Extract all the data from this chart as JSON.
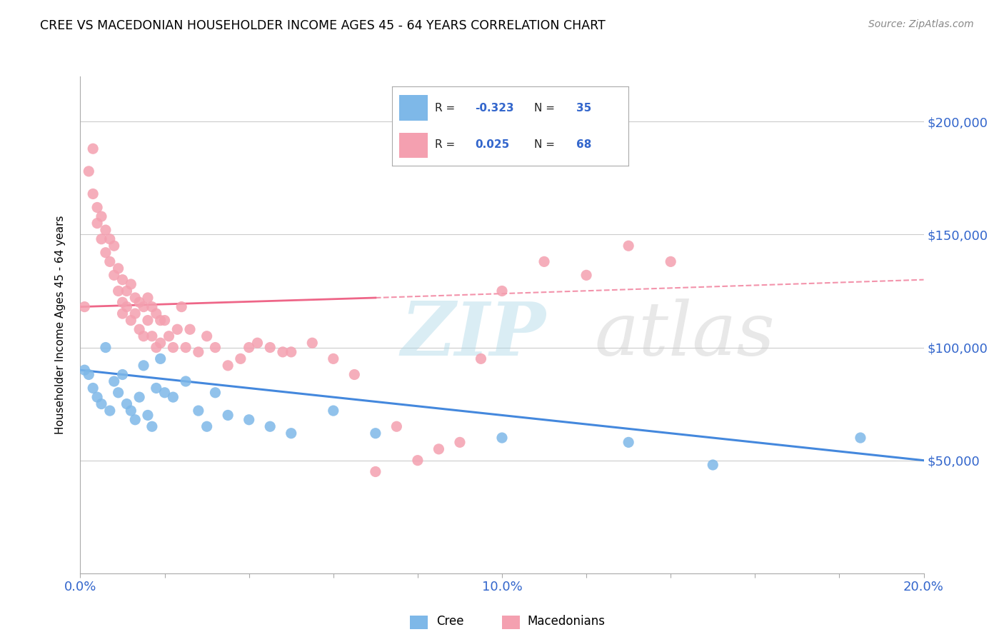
{
  "title": "CREE VS MACEDONIAN HOUSEHOLDER INCOME AGES 45 - 64 YEARS CORRELATION CHART",
  "source": "Source: ZipAtlas.com",
  "ylabel": "Householder Income Ages 45 - 64 years",
  "xlim": [
    0.0,
    0.2
  ],
  "ylim": [
    0,
    220000
  ],
  "yticks": [
    0,
    50000,
    100000,
    150000,
    200000
  ],
  "ytick_labels": [
    "",
    "$50,000",
    "$100,000",
    "$150,000",
    "$200,000"
  ],
  "xticks": [
    0.0,
    0.02,
    0.04,
    0.06,
    0.08,
    0.1,
    0.12,
    0.14,
    0.16,
    0.18,
    0.2
  ],
  "xtick_labels": [
    "0.0%",
    "",
    "",
    "",
    "",
    "10.0%",
    "",
    "",
    "",
    "",
    "20.0%"
  ],
  "cree_color": "#7EB8E8",
  "macedonian_color": "#F4A0B0",
  "cree_R": -0.323,
  "cree_N": 35,
  "macedonian_R": 0.025,
  "macedonian_N": 68,
  "cree_line_color": "#4488DD",
  "macedonian_line_color": "#EE6688",
  "cree_scatter_x": [
    0.001,
    0.002,
    0.003,
    0.004,
    0.005,
    0.006,
    0.007,
    0.008,
    0.009,
    0.01,
    0.011,
    0.012,
    0.013,
    0.014,
    0.015,
    0.016,
    0.017,
    0.018,
    0.019,
    0.02,
    0.022,
    0.025,
    0.028,
    0.03,
    0.032,
    0.035,
    0.04,
    0.045,
    0.05,
    0.06,
    0.07,
    0.1,
    0.13,
    0.15,
    0.185
  ],
  "cree_scatter_y": [
    90000,
    88000,
    82000,
    78000,
    75000,
    100000,
    72000,
    85000,
    80000,
    88000,
    75000,
    72000,
    68000,
    78000,
    92000,
    70000,
    65000,
    82000,
    95000,
    80000,
    78000,
    85000,
    72000,
    65000,
    80000,
    70000,
    68000,
    65000,
    62000,
    72000,
    62000,
    60000,
    58000,
    48000,
    60000
  ],
  "macedonian_scatter_x": [
    0.001,
    0.002,
    0.003,
    0.003,
    0.004,
    0.004,
    0.005,
    0.005,
    0.006,
    0.006,
    0.007,
    0.007,
    0.008,
    0.008,
    0.009,
    0.009,
    0.01,
    0.01,
    0.01,
    0.011,
    0.011,
    0.012,
    0.012,
    0.013,
    0.013,
    0.014,
    0.014,
    0.015,
    0.015,
    0.016,
    0.016,
    0.017,
    0.017,
    0.018,
    0.018,
    0.019,
    0.019,
    0.02,
    0.021,
    0.022,
    0.023,
    0.024,
    0.025,
    0.026,
    0.028,
    0.03,
    0.032,
    0.035,
    0.038,
    0.04,
    0.042,
    0.045,
    0.048,
    0.05,
    0.055,
    0.06,
    0.065,
    0.07,
    0.075,
    0.08,
    0.085,
    0.09,
    0.095,
    0.1,
    0.11,
    0.12,
    0.13,
    0.14
  ],
  "macedonian_scatter_y": [
    118000,
    178000,
    168000,
    188000,
    162000,
    155000,
    158000,
    148000,
    152000,
    142000,
    148000,
    138000,
    145000,
    132000,
    135000,
    125000,
    130000,
    120000,
    115000,
    125000,
    118000,
    128000,
    112000,
    122000,
    115000,
    120000,
    108000,
    118000,
    105000,
    122000,
    112000,
    118000,
    105000,
    115000,
    100000,
    112000,
    102000,
    112000,
    105000,
    100000,
    108000,
    118000,
    100000,
    108000,
    98000,
    105000,
    100000,
    92000,
    95000,
    100000,
    102000,
    100000,
    98000,
    98000,
    102000,
    95000,
    88000,
    45000,
    65000,
    50000,
    55000,
    58000,
    95000,
    125000,
    138000,
    132000,
    145000,
    138000
  ]
}
